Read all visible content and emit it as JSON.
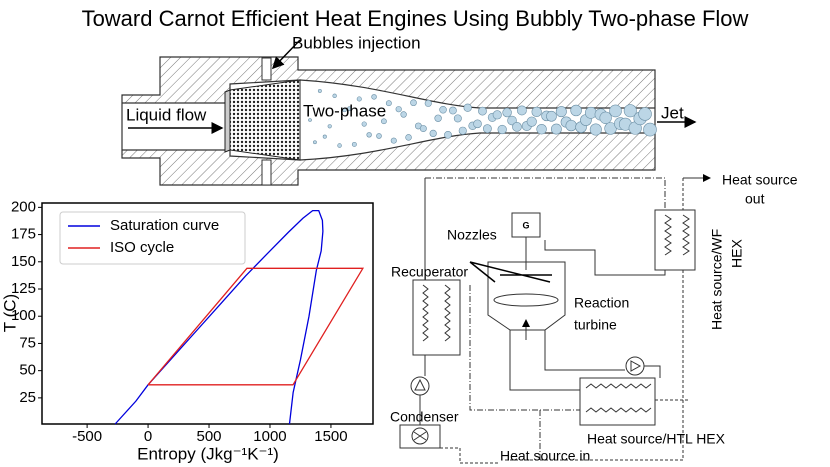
{
  "title": "Toward Carnot Efficient Heat Engines Using Bubbly Two-phase Flow",
  "nozzle": {
    "bubbles_injection": "Bubbles injection",
    "liquid_flow": "Liquid flow",
    "two_phase": "Two-phase",
    "jet": "Jet"
  },
  "chart_data": {
    "type": "line",
    "x_label": "Entropy (Jkg⁻¹K⁻¹)",
    "y_label": "T (C)",
    "xlim": [
      -870,
      1845
    ],
    "ylim": [
      1,
      204
    ],
    "xticks": [
      -500,
      0,
      500,
      1000,
      1500
    ],
    "yticks": [
      25,
      50,
      75,
      100,
      125,
      150,
      175,
      200
    ],
    "legend": "upper left",
    "series": [
      {
        "name": "Saturation curve",
        "color": "#0000dd",
        "x": [
          -270,
          -100,
          0,
          200,
          400,
          600,
          800,
          1000,
          1150,
          1270,
          1350,
          1400,
          1430,
          1434,
          1420,
          1380,
          1320,
          1250,
          1190,
          1160
        ],
        "values": [
          1,
          22,
          37,
          62,
          87,
          112,
          137,
          160,
          177,
          190,
          197,
          197,
          188,
          178,
          160,
          142,
          100,
          60,
          30,
          1
        ]
      },
      {
        "name": "ISO cycle",
        "color": "#e02020",
        "x": [
          0,
          811,
          1762,
          1189,
          0
        ],
        "values": [
          37,
          144,
          144,
          37,
          37
        ]
      }
    ]
  },
  "schematic": {
    "heat_source_out": [
      "Heat source",
      "out"
    ],
    "wf_hex": [
      "Heat source/WF",
      "HEX"
    ],
    "generator": "G",
    "nozzles": "Nozzles",
    "recuperator": "Recuperator",
    "reaction_turbine": [
      "Reaction",
      "turbine"
    ],
    "condenser": "Condenser",
    "htl_hex": "Heat source/HTL HEX",
    "heat_source_in": "Heat source in"
  }
}
